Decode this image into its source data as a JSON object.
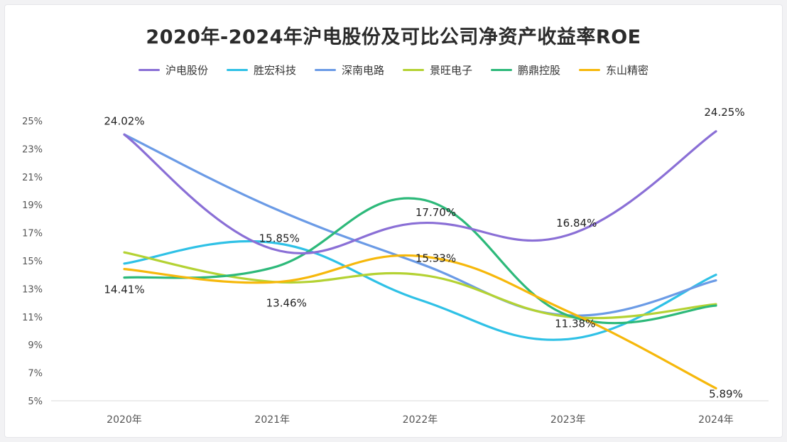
{
  "chart_data": {
    "type": "line",
    "title": "2020年-2024年沪电股份及可比公司净资产收益率ROE",
    "categories": [
      "2020年",
      "2021年",
      "2022年",
      "2023年",
      "2024年"
    ],
    "ylim": [
      5,
      25
    ],
    "yticks": [
      "5%",
      "7%",
      "9%",
      "11%",
      "13%",
      "15%",
      "17%",
      "19%",
      "21%",
      "23%",
      "25%"
    ],
    "ytick_values": [
      5,
      7,
      9,
      11,
      13,
      15,
      17,
      19,
      21,
      23,
      25
    ],
    "xlabel": "",
    "ylabel": "",
    "legend_position": "top-center",
    "grid": false,
    "series": [
      {
        "name": "沪电股份",
        "color": "#8a6fd6",
        "values": [
          24.02,
          15.85,
          17.7,
          16.84,
          24.25
        ]
      },
      {
        "name": "胜宏科技",
        "color": "#2fc1e6",
        "values": [
          14.8,
          16.3,
          12.2,
          9.4,
          14.0
        ]
      },
      {
        "name": "深南电路",
        "color": "#6b9be6",
        "values": [
          24.02,
          18.8,
          14.8,
          11.1,
          13.6
        ]
      },
      {
        "name": "景旺电子",
        "color": "#b4d233",
        "values": [
          15.6,
          13.5,
          14.0,
          11.0,
          11.9
        ]
      },
      {
        "name": "鹏鼎控股",
        "color": "#2db97a",
        "values": [
          13.8,
          14.5,
          19.4,
          11.1,
          11.8
        ]
      },
      {
        "name": "东山精密",
        "color": "#f6b80b",
        "values": [
          14.41,
          13.46,
          15.33,
          11.38,
          5.89
        ]
      }
    ],
    "annotations": [
      {
        "text": "24.02%",
        "series": 0,
        "index": 0
      },
      {
        "text": "15.85%",
        "series": 0,
        "index": 1
      },
      {
        "text": "17.70%",
        "series": 0,
        "index": 2
      },
      {
        "text": "16.84%",
        "series": 0,
        "index": 3
      },
      {
        "text": "24.25%",
        "series": 0,
        "index": 4
      },
      {
        "text": "14.41%",
        "series": 5,
        "index": 0
      },
      {
        "text": "13.46%",
        "series": 5,
        "index": 1
      },
      {
        "text": "15.33%",
        "series": 5,
        "index": 2
      },
      {
        "text": "11.38%",
        "series": 5,
        "index": 3
      },
      {
        "text": "5.89%",
        "series": 5,
        "index": 4
      }
    ]
  }
}
